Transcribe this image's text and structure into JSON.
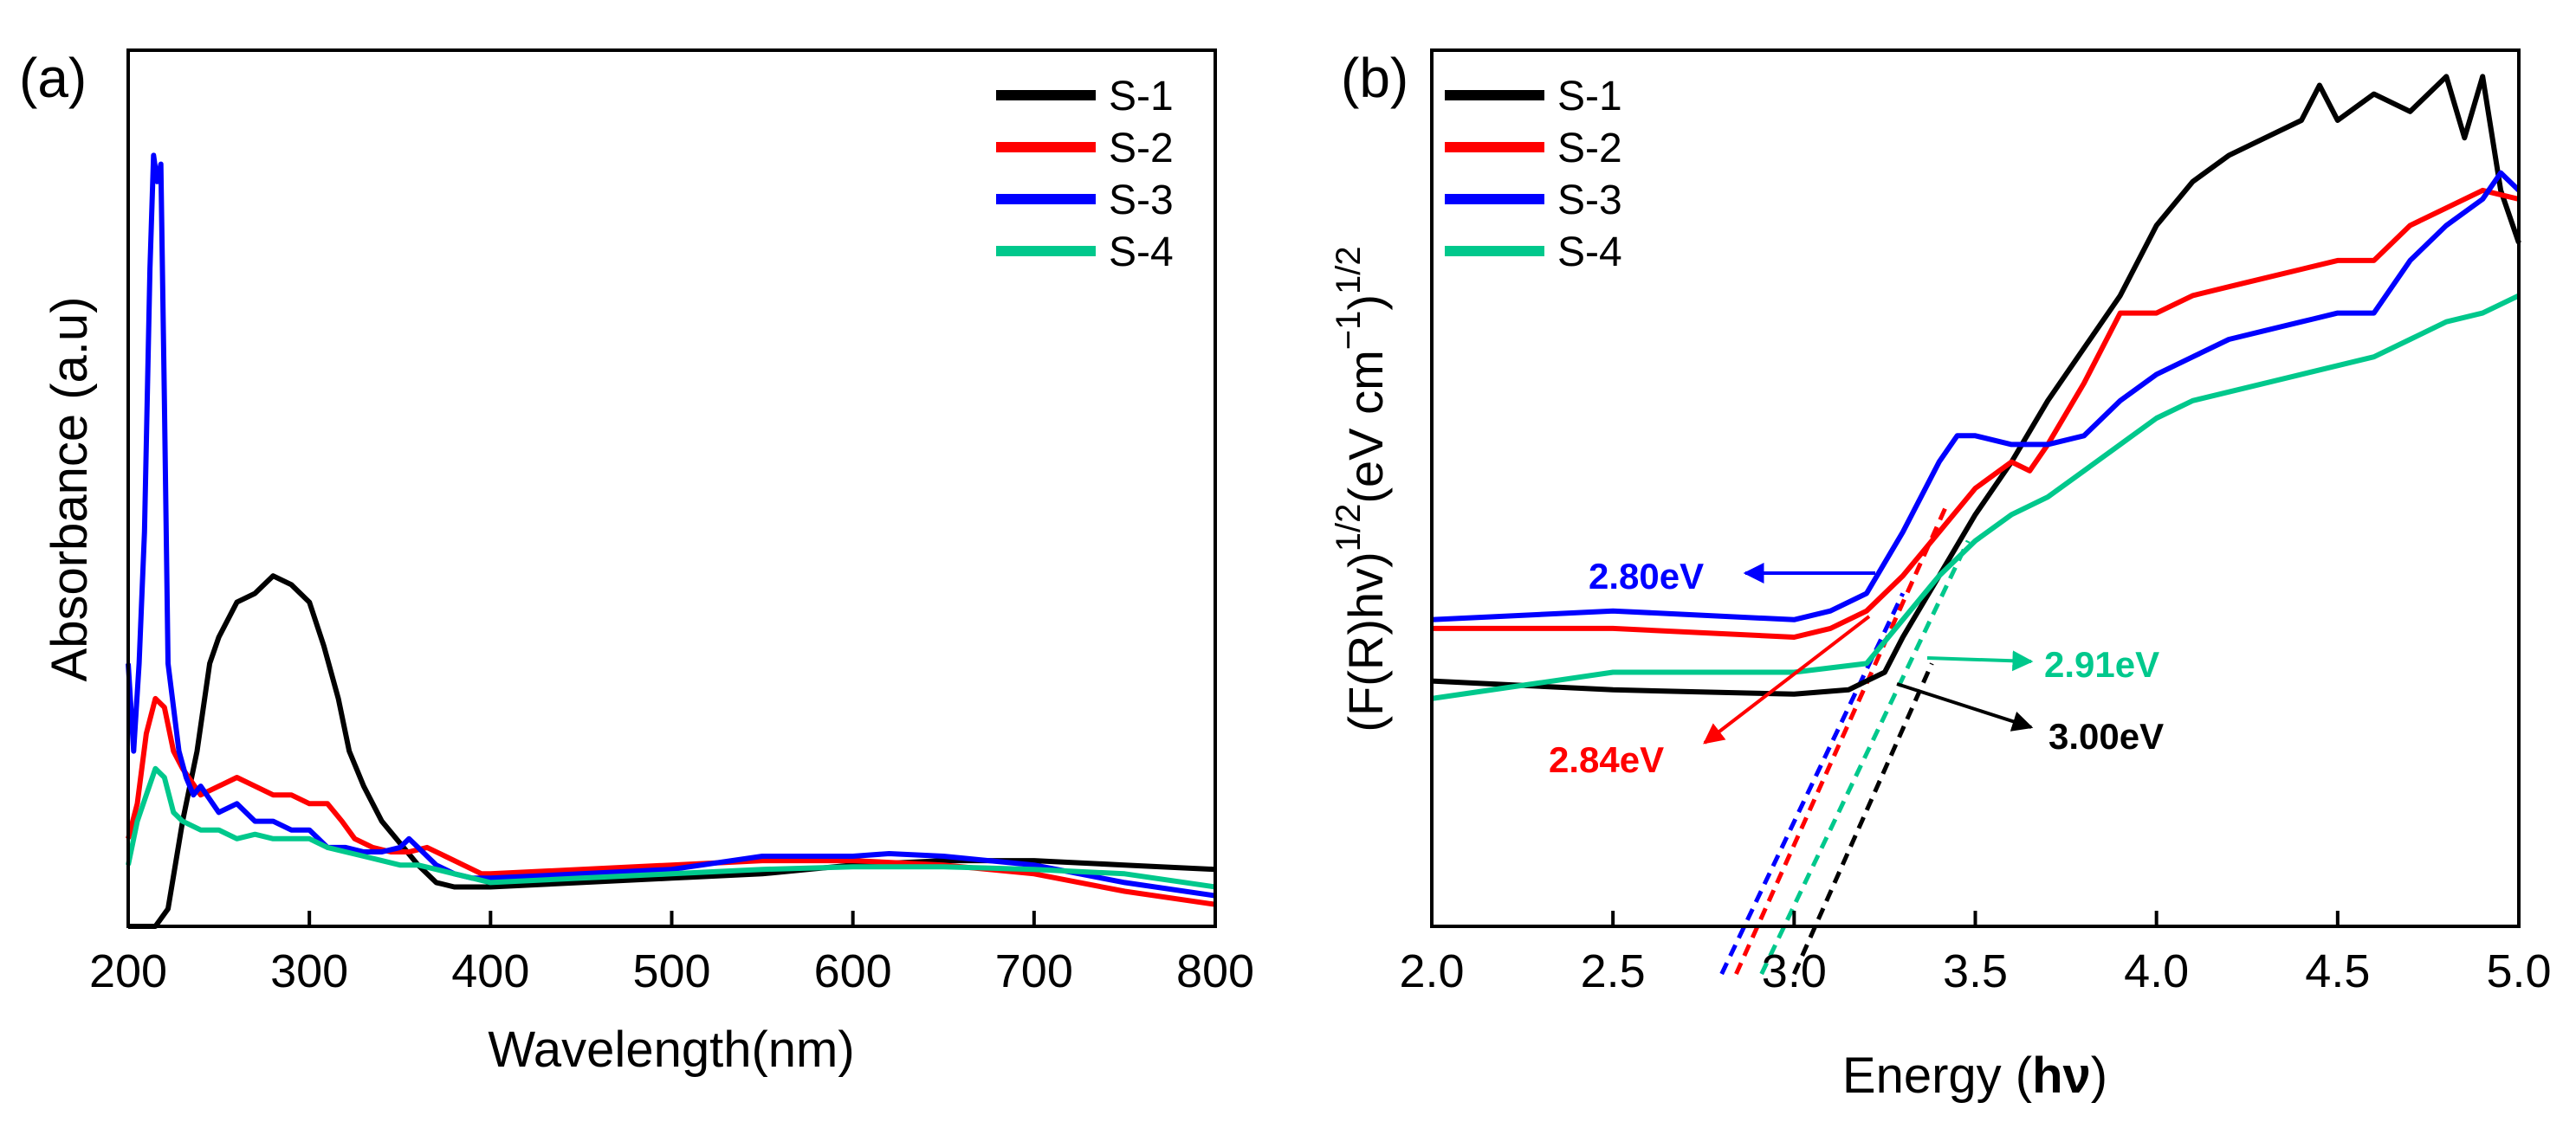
{
  "chart_data": [
    {
      "type": "line",
      "panel_label": "(a)",
      "xlabel": "Wavelength(nm)",
      "ylabel": "Absorbance (a.u)",
      "xlim": [
        200,
        800
      ],
      "ylim": [
        0,
        1.0
      ],
      "xticks": [
        200,
        300,
        400,
        500,
        600,
        700,
        800
      ],
      "xtick_labels": [
        "200",
        "300",
        "400",
        "500",
        "600",
        "700",
        "800"
      ],
      "grid": false,
      "legend": "top-right",
      "series": [
        {
          "name": "S-1",
          "color": "#000000",
          "x": [
            200,
            215,
            222,
            230,
            238,
            245,
            250,
            260,
            270,
            280,
            290,
            300,
            308,
            316,
            322,
            330,
            340,
            350,
            360,
            370,
            380,
            390,
            400,
            450,
            500,
            550,
            600,
            650,
            700,
            750,
            800
          ],
          "y": [
            0,
            0,
            0.02,
            0.12,
            0.2,
            0.3,
            0.33,
            0.37,
            0.38,
            0.4,
            0.39,
            0.37,
            0.32,
            0.26,
            0.2,
            0.16,
            0.12,
            0.095,
            0.07,
            0.05,
            0.045,
            0.045,
            0.045,
            0.05,
            0.055,
            0.06,
            0.07,
            0.075,
            0.075,
            0.07,
            0.065
          ]
        },
        {
          "name": "S-2",
          "color": "#ff0000",
          "x": [
            200,
            205,
            210,
            215,
            220,
            225,
            230,
            240,
            250,
            260,
            270,
            280,
            290,
            300,
            310,
            318,
            325,
            335,
            345,
            355,
            365,
            375,
            385,
            395,
            400,
            450,
            500,
            550,
            600,
            650,
            700,
            750,
            800
          ],
          "y": [
            0.1,
            0.14,
            0.22,
            0.26,
            0.25,
            0.2,
            0.18,
            0.15,
            0.16,
            0.17,
            0.16,
            0.15,
            0.15,
            0.14,
            0.14,
            0.12,
            0.1,
            0.09,
            0.085,
            0.085,
            0.09,
            0.08,
            0.07,
            0.06,
            0.06,
            0.065,
            0.07,
            0.075,
            0.075,
            0.07,
            0.06,
            0.04,
            0.025
          ]
        },
        {
          "name": "S-3",
          "color": "#0000ff",
          "x": [
            200,
            203,
            206,
            209,
            212,
            214,
            216,
            218,
            220,
            222,
            225,
            228,
            232,
            236,
            240,
            250,
            260,
            270,
            280,
            290,
            300,
            310,
            320,
            330,
            340,
            350,
            355,
            360,
            365,
            370,
            380,
            390,
            400,
            450,
            500,
            550,
            600,
            620,
            650,
            700,
            750,
            800
          ],
          "y": [
            0.3,
            0.2,
            0.3,
            0.45,
            0.75,
            0.88,
            0.85,
            0.87,
            0.6,
            0.3,
            0.25,
            0.2,
            0.17,
            0.15,
            0.16,
            0.13,
            0.14,
            0.12,
            0.12,
            0.11,
            0.11,
            0.09,
            0.09,
            0.085,
            0.085,
            0.09,
            0.1,
            0.09,
            0.08,
            0.07,
            0.06,
            0.055,
            0.055,
            0.06,
            0.065,
            0.08,
            0.08,
            0.083,
            0.08,
            0.07,
            0.05,
            0.035
          ]
        },
        {
          "name": "S-4",
          "color": "#00c88c",
          "x": [
            200,
            205,
            210,
            215,
            220,
            225,
            230,
            240,
            250,
            260,
            270,
            280,
            290,
            300,
            310,
            320,
            330,
            340,
            350,
            360,
            370,
            380,
            390,
            400,
            450,
            500,
            550,
            600,
            650,
            700,
            750,
            800
          ],
          "y": [
            0.07,
            0.12,
            0.15,
            0.18,
            0.17,
            0.13,
            0.12,
            0.11,
            0.11,
            0.1,
            0.105,
            0.1,
            0.1,
            0.1,
            0.09,
            0.085,
            0.08,
            0.075,
            0.07,
            0.07,
            0.065,
            0.06,
            0.055,
            0.05,
            0.055,
            0.06,
            0.065,
            0.068,
            0.068,
            0.065,
            0.06,
            0.045
          ]
        }
      ]
    },
    {
      "type": "line",
      "panel_label": "(b)",
      "xlabel": "Energy (hν)",
      "xlabel_main": "Energy (",
      "xlabel_bold": "hν",
      "xlabel_end": ")",
      "ylabel": "(F(R)hν)^1/2 (eV cm^-1)^1/2",
      "ylabel_main": "(F(R)hv)",
      "ylabel_sup1": "1/2",
      "ylabel_unit": "(eV cm",
      "ylabel_sup2": "−1",
      "ylabel_close": ")",
      "ylabel_sup3": "1/2",
      "xlim": [
        2.0,
        5.0
      ],
      "ylim": [
        0,
        1.0
      ],
      "xticks": [
        2.0,
        2.5,
        3.0,
        3.5,
        4.0,
        4.5,
        5.0
      ],
      "xtick_labels": [
        "2.0",
        "2.5",
        "3.0",
        "3.5",
        "4.0",
        "4.5",
        "5.0"
      ],
      "grid": false,
      "legend": "top-left",
      "series": [
        {
          "name": "S-1",
          "color": "#000000",
          "x": [
            2.0,
            2.5,
            3.0,
            3.15,
            3.25,
            3.3,
            3.4,
            3.5,
            3.6,
            3.7,
            3.8,
            3.9,
            4.0,
            4.1,
            4.2,
            4.3,
            4.4,
            4.45,
            4.5,
            4.6,
            4.7,
            4.8,
            4.85,
            4.9,
            4.95,
            5.0
          ],
          "y": [
            0.28,
            0.27,
            0.265,
            0.27,
            0.29,
            0.33,
            0.4,
            0.47,
            0.53,
            0.6,
            0.66,
            0.72,
            0.8,
            0.85,
            0.88,
            0.9,
            0.92,
            0.96,
            0.92,
            0.95,
            0.93,
            0.97,
            0.9,
            0.97,
            0.84,
            0.78
          ]
        },
        {
          "name": "S-2",
          "color": "#ff0000",
          "x": [
            2.0,
            2.5,
            3.0,
            3.1,
            3.2,
            3.3,
            3.4,
            3.5,
            3.6,
            3.65,
            3.7,
            3.8,
            3.9,
            4.0,
            4.1,
            4.2,
            4.3,
            4.4,
            4.5,
            4.6,
            4.7,
            4.8,
            4.9,
            5.0
          ],
          "y": [
            0.34,
            0.34,
            0.33,
            0.34,
            0.36,
            0.4,
            0.45,
            0.5,
            0.53,
            0.52,
            0.55,
            0.62,
            0.7,
            0.7,
            0.72,
            0.73,
            0.74,
            0.75,
            0.76,
            0.76,
            0.8,
            0.82,
            0.84,
            0.83
          ]
        },
        {
          "name": "S-3",
          "color": "#0000ff",
          "x": [
            2.0,
            2.5,
            3.0,
            3.1,
            3.2,
            3.3,
            3.4,
            3.45,
            3.5,
            3.6,
            3.7,
            3.8,
            3.9,
            4.0,
            4.1,
            4.2,
            4.3,
            4.4,
            4.5,
            4.6,
            4.7,
            4.8,
            4.9,
            4.95,
            5.0
          ],
          "y": [
            0.35,
            0.36,
            0.35,
            0.36,
            0.38,
            0.45,
            0.53,
            0.56,
            0.56,
            0.55,
            0.55,
            0.56,
            0.6,
            0.63,
            0.65,
            0.67,
            0.68,
            0.69,
            0.7,
            0.7,
            0.76,
            0.8,
            0.83,
            0.86,
            0.84
          ]
        },
        {
          "name": "S-4",
          "color": "#00c88c",
          "x": [
            2.0,
            2.5,
            3.0,
            3.2,
            3.3,
            3.4,
            3.5,
            3.6,
            3.7,
            3.8,
            3.9,
            4.0,
            4.1,
            4.2,
            4.3,
            4.4,
            4.5,
            4.6,
            4.7,
            4.8,
            4.9,
            5.0
          ],
          "y": [
            0.26,
            0.29,
            0.29,
            0.3,
            0.35,
            0.4,
            0.44,
            0.47,
            0.49,
            0.52,
            0.55,
            0.58,
            0.6,
            0.61,
            0.62,
            0.63,
            0.64,
            0.65,
            0.67,
            0.69,
            0.7,
            0.72
          ]
        }
      ],
      "tangent_lines": [
        {
          "color": "#0000ff",
          "x": [
            2.8,
            3.3
          ],
          "y": [
            0.0,
            0.38
          ]
        },
        {
          "color": "#ff0000",
          "x": [
            2.84,
            3.42
          ],
          "y": [
            0.0,
            0.48
          ]
        },
        {
          "color": "#00c88c",
          "x": [
            2.91,
            3.48
          ],
          "y": [
            0.0,
            0.44
          ]
        },
        {
          "color": "#000000",
          "x": [
            3.0,
            3.38
          ],
          "y": [
            0.0,
            0.3
          ]
        }
      ],
      "annotations": [
        {
          "text": "2.80eV",
          "color": "#0000ff"
        },
        {
          "text": "2.84eV",
          "color": "#ff0000"
        },
        {
          "text": "2.91eV",
          "color": "#00c88c"
        },
        {
          "text": "3.00eV",
          "color": "#000000"
        }
      ]
    }
  ]
}
